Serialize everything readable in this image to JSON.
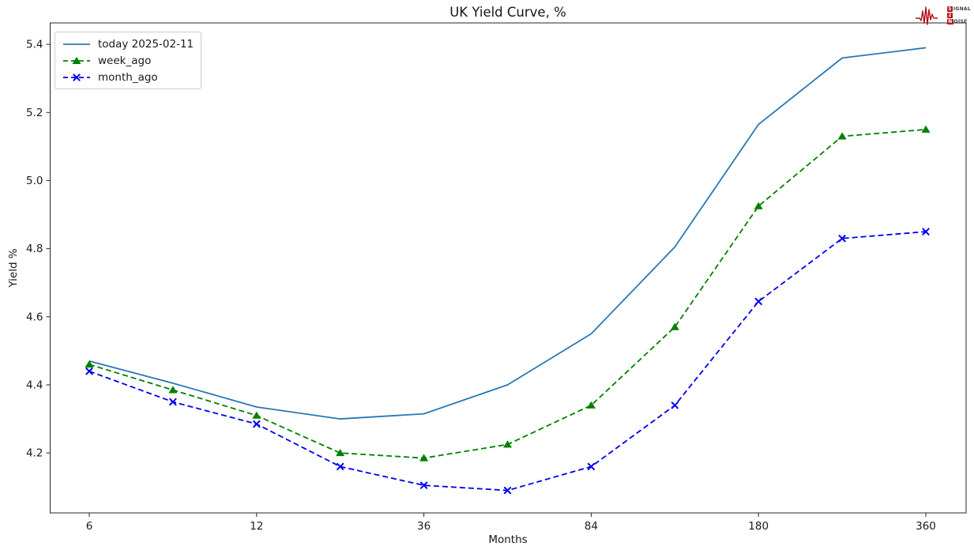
{
  "logo": {
    "s": "S",
    "ignal": "IGNAL",
    "two": "2",
    "n": "N",
    "oise": "OISE",
    "red": "#b01116"
  },
  "chart_data": {
    "type": "line",
    "title": "UK Yield Curve, %",
    "xlabel": "Months",
    "ylabel": "Yield %",
    "x_months": [
      6,
      9,
      12,
      24,
      36,
      60,
      84,
      120,
      180,
      240,
      360
    ],
    "x_scale": "equally spaced tenor points",
    "xtick_labels": [
      "6",
      "12",
      "36",
      "84",
      "180",
      "360"
    ],
    "xtick_indices": [
      0,
      2,
      4,
      6,
      8,
      10
    ],
    "ytick_labels": [
      "4.2",
      "4.4",
      "4.6",
      "4.8",
      "5.0",
      "5.2",
      "5.4"
    ],
    "ytick_values": [
      4.2,
      4.4,
      4.6,
      4.8,
      5.0,
      5.2,
      5.4
    ],
    "ylim": [
      4.024,
      5.463
    ],
    "grid": false,
    "legend_position": "upper left",
    "series": [
      {
        "name": "today 2025-02-11",
        "color": "#2878b5",
        "style": "solid",
        "marker": "none",
        "values": [
          4.47,
          4.405,
          4.335,
          4.3,
          4.315,
          4.4,
          4.55,
          4.805,
          5.165,
          5.36,
          5.39
        ]
      },
      {
        "name": "week_ago",
        "color": "#008000",
        "style": "dashed",
        "marker": "triangle",
        "values": [
          4.46,
          4.385,
          4.31,
          4.2,
          4.185,
          4.225,
          4.34,
          4.57,
          4.925,
          5.13,
          5.15
        ]
      },
      {
        "name": "month_ago",
        "color": "#0000ee",
        "style": "dashed",
        "marker": "x",
        "values": [
          4.44,
          4.35,
          4.285,
          4.16,
          4.105,
          4.09,
          4.16,
          4.34,
          4.645,
          4.83,
          4.85
        ]
      }
    ]
  }
}
